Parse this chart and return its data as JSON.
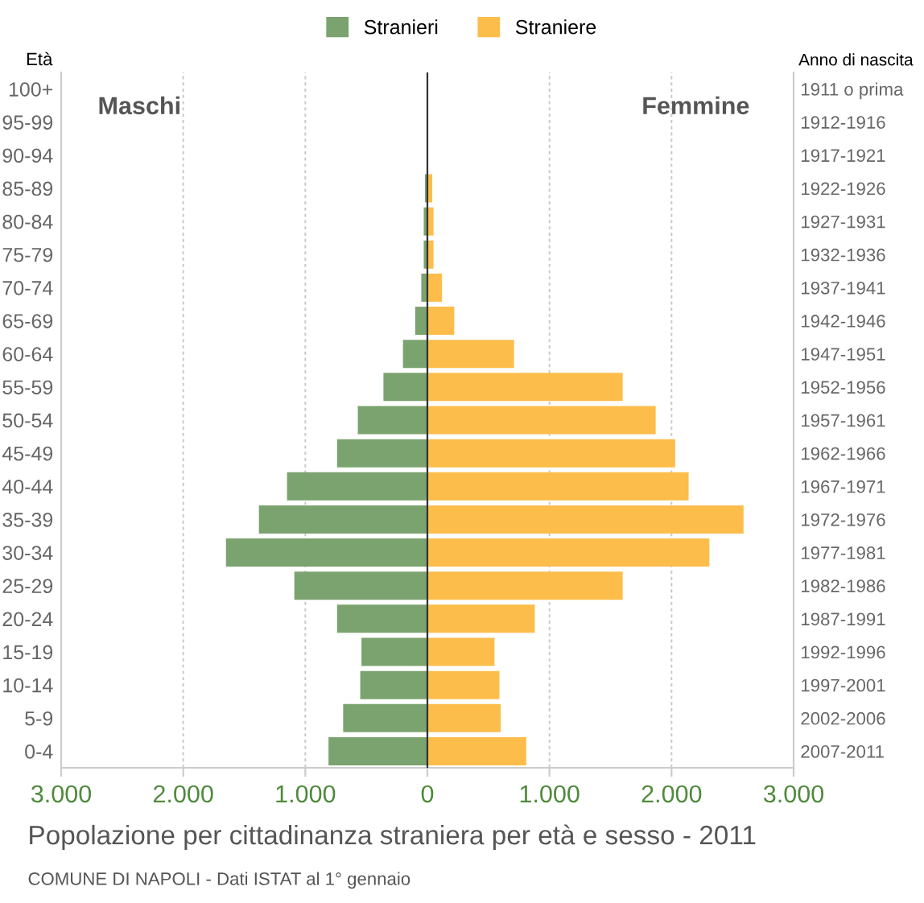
{
  "chart_data": {
    "type": "bar",
    "orientation": "horizontal",
    "title": "Popolazione per cittadinanza straniera per età e sesso - 2011",
    "ylabel": "Età",
    "y2label": "Anno di nascita",
    "categories": [
      "100+",
      "95-99",
      "90-94",
      "85-89",
      "80-84",
      "75-79",
      "70-74",
      "65-69",
      "60-64",
      "55-59",
      "50-54",
      "45-49",
      "40-44",
      "35-39",
      "30-34",
      "25-29",
      "20-24",
      "15-19",
      "10-14",
      "5-9",
      "0-4"
    ],
    "y2_categories": [
      "1911 o prima",
      "1912-1916",
      "1917-1921",
      "1922-1926",
      "1927-1931",
      "1932-1936",
      "1937-1941",
      "1942-1946",
      "1947-1951",
      "1952-1956",
      "1957-1961",
      "1962-1966",
      "1967-1971",
      "1972-1976",
      "1977-1981",
      "1982-1986",
      "1987-1991",
      "1992-1996",
      "1997-2001",
      "2002-2006",
      "2007-2011"
    ],
    "series": [
      {
        "name": "Stranieri",
        "color": "#7ba36f",
        "values": [
          0,
          0,
          0,
          -20,
          -30,
          -30,
          -50,
          -100,
          -200,
          -360,
          -570,
          -740,
          -1150,
          -1380,
          -1650,
          -1090,
          -740,
          -540,
          -550,
          -690,
          -810
        ]
      },
      {
        "name": "Straniere",
        "color": "#fdbd4b",
        "values": [
          0,
          0,
          0,
          40,
          50,
          50,
          120,
          220,
          710,
          1600,
          1870,
          2030,
          2140,
          2590,
          2310,
          1600,
          880,
          550,
          590,
          600,
          810
        ]
      }
    ],
    "xlim": [
      -3000,
      3000
    ],
    "xticks": [
      {
        "value": -3000,
        "label": "3.000"
      },
      {
        "value": -2000,
        "label": "2.000"
      },
      {
        "value": -1000,
        "label": "1.000"
      },
      0,
      {
        "value": 1000,
        "label": "1.000"
      },
      {
        "value": 2000,
        "label": "2.000"
      },
      {
        "value": 3000,
        "label": "3.000"
      }
    ],
    "stacked": true,
    "grid": "x",
    "legend": "top",
    "annotations": [
      "Maschi",
      "Femmine",
      "COMUNE DI NAPOLI - Dati ISTAT al 1° gennaio"
    ]
  }
}
